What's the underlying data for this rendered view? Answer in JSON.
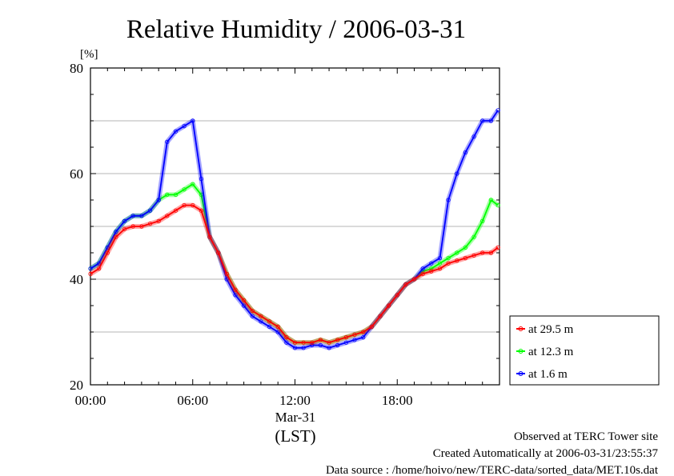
{
  "chart_data": {
    "type": "line",
    "title": "Relative Humidity / 2006-03-31",
    "ylabel": "[%]",
    "xlabel": "(LST)",
    "date_label": "Mar-31",
    "ylim": [
      20,
      80
    ],
    "xlim": [
      "00:00",
      "24:00"
    ],
    "yticks": [
      "20",
      "40",
      "60",
      "80"
    ],
    "xticks": [
      "00:00",
      "06:00",
      "12:00",
      "18:00"
    ],
    "grid": true,
    "legend_placement": "right",
    "x": [
      "00:00",
      "00:30",
      "01:00",
      "01:30",
      "02:00",
      "02:30",
      "03:00",
      "03:30",
      "04:00",
      "04:30",
      "05:00",
      "05:30",
      "06:00",
      "06:30",
      "07:00",
      "07:30",
      "08:00",
      "08:30",
      "09:00",
      "09:30",
      "10:00",
      "10:30",
      "11:00",
      "11:30",
      "12:00",
      "12:30",
      "13:00",
      "13:30",
      "14:00",
      "14:30",
      "15:00",
      "15:30",
      "16:00",
      "16:30",
      "17:00",
      "17:30",
      "18:00",
      "18:30",
      "19:00",
      "19:30",
      "20:00",
      "20:30",
      "21:00",
      "21:30",
      "22:00",
      "22:30",
      "23:00",
      "23:30",
      "23:55"
    ],
    "series": [
      {
        "name": "at 29.5 m",
        "color": "#ff0000",
        "values": [
          41,
          42,
          45,
          48,
          49.5,
          50,
          50,
          50.5,
          51,
          52,
          53,
          54,
          54,
          53,
          48,
          45,
          41,
          38,
          36,
          34,
          33,
          32,
          31,
          29,
          28,
          28,
          28,
          28.5,
          28,
          28.5,
          29,
          29.5,
          30,
          31,
          33,
          35,
          37,
          39,
          40,
          41,
          41.5,
          42,
          43,
          43.5,
          44,
          44.5,
          45,
          45,
          46
        ]
      },
      {
        "name": "at 12.3 m",
        "color": "#00ff00",
        "values": [
          42,
          43,
          46,
          49,
          51,
          52,
          52,
          53,
          55,
          56,
          56,
          57,
          58,
          56,
          48,
          45,
          41,
          38,
          36,
          34,
          33,
          32,
          31,
          29,
          28,
          28,
          28,
          28.5,
          28,
          28.5,
          29,
          29.5,
          30,
          31,
          33,
          35,
          37,
          39,
          40,
          41.5,
          42,
          43,
          44,
          45,
          46,
          48,
          51,
          55,
          54
        ]
      },
      {
        "name": "at 1.6 m",
        "color": "#0000ff",
        "values": [
          42,
          43,
          46,
          49,
          51,
          52,
          52,
          53,
          55,
          66,
          68,
          69,
          70,
          59,
          48,
          45,
          40,
          37,
          35,
          33,
          32,
          31,
          30,
          28,
          27,
          27,
          27.5,
          27.5,
          27,
          27.5,
          28,
          28.5,
          29,
          31,
          33,
          35,
          37,
          39,
          40,
          42,
          43,
          44,
          55,
          60,
          64,
          67,
          70,
          70,
          72
        ]
      }
    ]
  },
  "footer": {
    "line1": "Observed at TERC Tower site",
    "line2": "Created Automatically at 2006-03-31/23:55:37",
    "line3": "Data source : /home/hoivo/new/TERC-data/sorted_data/MET.10s.dat"
  }
}
